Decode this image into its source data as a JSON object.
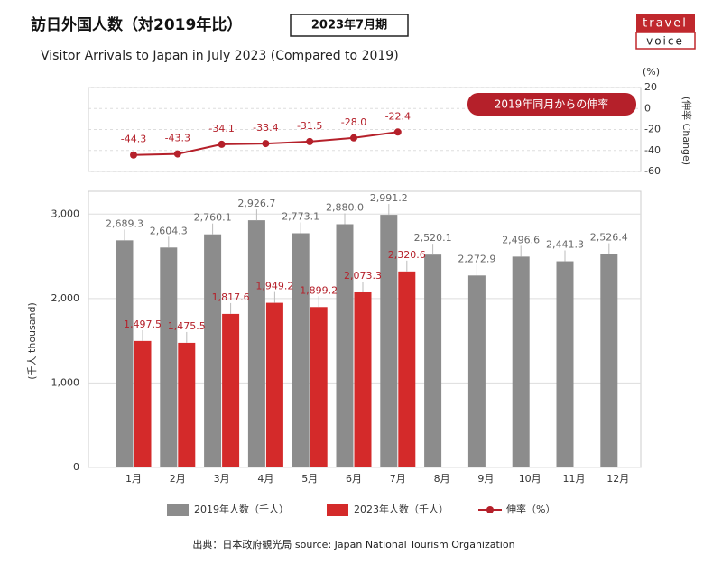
{
  "header": {
    "title": "訪日外国人数（対2019年比）",
    "badge": "2023年7月期",
    "subtitle": "Visitor Arrivals to Japan in July 2023 (Compared to 2019)",
    "logo": [
      "travel",
      "voice"
    ]
  },
  "source": "出典：日本政府観光局  source: Japan National Tourism Organization",
  "chart_data": [
    {
      "type": "line",
      "categories": [
        "1月",
        "2月",
        "3月",
        "4月",
        "5月",
        "6月",
        "7月",
        "8月",
        "9月",
        "10月",
        "11月",
        "12月"
      ],
      "y2_unit": "(%)",
      "y2_label": "(伸率 Change)",
      "annotation": "2019年同月からの伸率",
      "y2lim": [
        -60,
        20
      ],
      "y2ticks": [
        20,
        0,
        -20,
        -40,
        -60
      ],
      "grid": true,
      "series": [
        {
          "name": "伸率（%）",
          "color": "#b5202a",
          "axis": "y2",
          "values": [
            -44.3,
            -43.3,
            -34.1,
            -33.4,
            -31.5,
            -28.0,
            -22.4,
            null,
            null,
            null,
            null,
            null
          ],
          "value_labels": [
            "-44.3",
            "-43.3",
            "-34.1",
            "-33.4",
            "-31.5",
            "-28.0",
            "-22.4",
            null,
            null,
            null,
            null,
            null
          ]
        }
      ]
    },
    {
      "type": "bar",
      "categories": [
        "1月",
        "2月",
        "3月",
        "4月",
        "5月",
        "6月",
        "7月",
        "8月",
        "9月",
        "10月",
        "11月",
        "12月"
      ],
      "ylabel": "(千人 thousand)",
      "ylim": [
        0,
        3270
      ],
      "yticks": [
        0,
        {
          "value": 1000,
          "label": "1,000"
        },
        {
          "value": 2000,
          "label": "2,000"
        },
        {
          "value": 3000,
          "label": "3,000"
        }
      ],
      "grid": true,
      "series": [
        {
          "name": "2019年人数（千人）",
          "color": "#8c8c8c",
          "values": [
            2689.3,
            2604.3,
            2760.1,
            2926.7,
            2773.1,
            2880.0,
            2991.2,
            2520.1,
            2272.9,
            2496.6,
            2441.3,
            2526.4
          ],
          "value_labels": [
            "2,689.3",
            "2,604.3",
            "2,760.1",
            "2,926.7",
            "2,773.1",
            "2,880.0",
            "2,991.2",
            "2,520.1",
            "2,272.9",
            "2,496.6",
            "2,441.3",
            "2,526.4"
          ]
        },
        {
          "name": "2023年人数（千人）",
          "color": "#d42a2a",
          "values": [
            1497.5,
            1475.5,
            1817.6,
            1949.2,
            1899.2,
            2073.3,
            2320.6,
            null,
            null,
            null,
            null,
            null
          ],
          "value_labels": [
            "1,497.5",
            "1,475.5",
            "1,817.6",
            "1,949.2",
            "1,899.2",
            "2,073.3",
            "2,320.6",
            null,
            null,
            null,
            null,
            null
          ]
        }
      ]
    }
  ]
}
